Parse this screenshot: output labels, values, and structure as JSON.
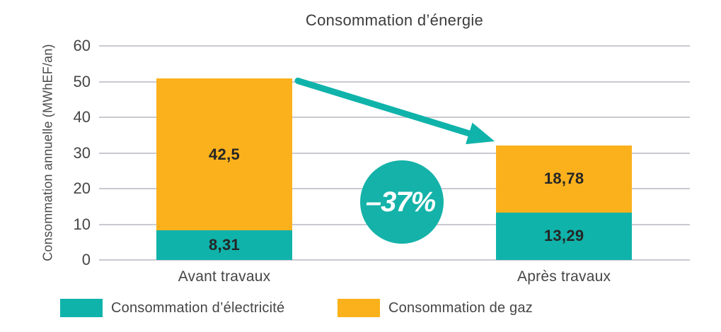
{
  "title": "Consommation d’énergie",
  "colors": {
    "electricity": "#0FB3AA",
    "gas": "#FBB11C",
    "grid": "#C9C9D1",
    "arrow": "#0FB3AA",
    "badge_bg": "#14B2A8",
    "badge_text": "#FFFFFF"
  },
  "badge": {
    "label": "–37%"
  },
  "legend": {
    "items": [
      {
        "label": "Consommation d’électricité",
        "color": "#0FB3AA"
      },
      {
        "label": "Consommation de gaz",
        "color": "#FBB11C"
      }
    ]
  },
  "chart_data": {
    "type": "bar",
    "stacked": true,
    "title": "Consommation d’énergie",
    "xlabel": "",
    "ylabel": "Consommation annuelle (MWhEF/an)",
    "categories": [
      "Avant travaux",
      "Après travaux"
    ],
    "series": [
      {
        "name": "Consommation d’électricité",
        "color": "#0FB3AA",
        "values": [
          8.31,
          13.29
        ],
        "labels": [
          "8,31",
          "13,29"
        ]
      },
      {
        "name": "Consommation de gaz",
        "color": "#FBB11C",
        "values": [
          42.5,
          18.78
        ],
        "labels": [
          "42,5",
          "18,78"
        ]
      }
    ],
    "totals": [
      50.81,
      32.07
    ],
    "ylim": [
      0,
      60
    ],
    "yticks": [
      0,
      10,
      20,
      30,
      40,
      50,
      60
    ],
    "grid": true,
    "legend_position": "bottom",
    "annotations": [
      {
        "type": "arrow",
        "from_category": 0,
        "to_category": 1,
        "label": "–37%"
      }
    ]
  }
}
